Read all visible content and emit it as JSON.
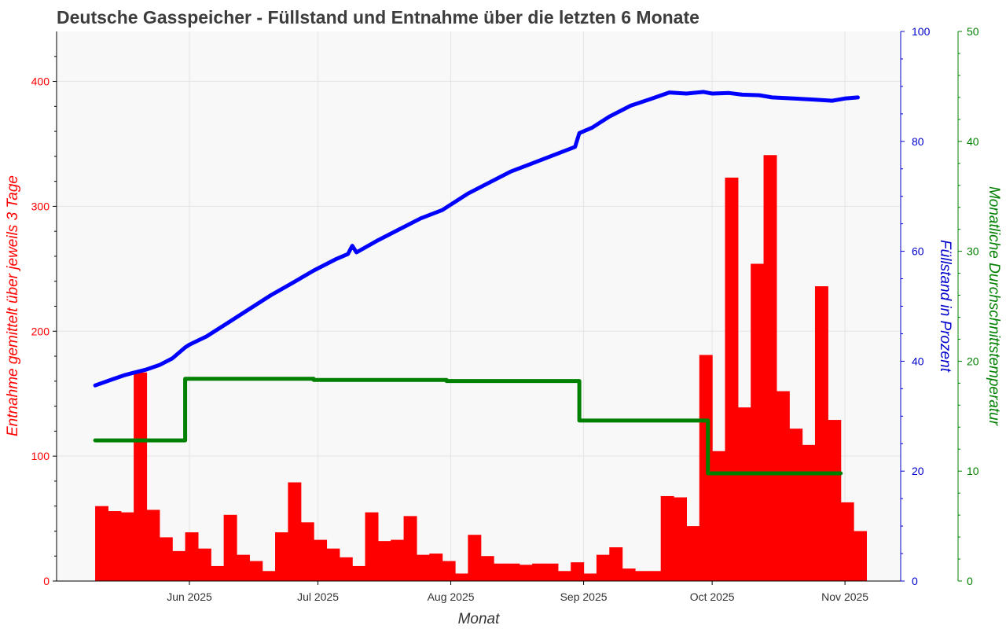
{
  "chart_data": {
    "type": "bar",
    "title": "Deutsche Gasspeicher - Füllstand und Entnahme über die letzten 6 Monate",
    "xlabel": "Monat",
    "ylabel_left": "Entnahme gemittelt über jeweils 3 Tage",
    "ylabel_right1": "Füllstand in Prozent",
    "ylabel_right2": "Monatliche Durchschnittstemperatur",
    "x_ticks": [
      "Jun 2025",
      "Jul 2025",
      "Aug 2025",
      "Sep 2025",
      "Oct 2025",
      "Nov 2025"
    ],
    "x_tick_dates": [
      "2025-06-01",
      "2025-07-01",
      "2025-08-01",
      "2025-09-01",
      "2025-10-01",
      "2025-11-01"
    ],
    "xlim": [
      "2025-05-01",
      "2025-11-14"
    ],
    "grid": true,
    "axes": {
      "left": {
        "ylim": [
          0,
          440
        ],
        "ticks": [
          0,
          100,
          200,
          300,
          400
        ],
        "color": "#ff0000"
      },
      "right1": {
        "ylim": [
          0,
          100
        ],
        "ticks": [
          0,
          20,
          40,
          60,
          80,
          100
        ],
        "color": "#0000cc"
      },
      "right2": {
        "ylim": [
          0,
          50
        ],
        "ticks": [
          0,
          10,
          20,
          30,
          40,
          50
        ],
        "color": "#008000"
      }
    },
    "series": [
      {
        "kind": "bar",
        "axis": "left",
        "color": "#ff0000",
        "width_days": 3,
        "x": [
          "2025-05-10",
          "2025-05-13",
          "2025-05-16",
          "2025-05-19",
          "2025-05-22",
          "2025-05-25",
          "2025-05-28",
          "2025-05-31",
          "2025-06-03",
          "2025-06-06",
          "2025-06-09",
          "2025-06-12",
          "2025-06-15",
          "2025-06-18",
          "2025-06-21",
          "2025-06-24",
          "2025-06-27",
          "2025-06-30",
          "2025-07-03",
          "2025-07-06",
          "2025-07-09",
          "2025-07-12",
          "2025-07-15",
          "2025-07-18",
          "2025-07-21",
          "2025-07-24",
          "2025-07-27",
          "2025-07-30",
          "2025-08-02",
          "2025-08-05",
          "2025-08-08",
          "2025-08-11",
          "2025-08-14",
          "2025-08-17",
          "2025-08-20",
          "2025-08-23",
          "2025-08-26",
          "2025-08-29",
          "2025-09-01",
          "2025-09-04",
          "2025-09-07",
          "2025-09-10",
          "2025-09-13",
          "2025-09-16",
          "2025-09-19",
          "2025-09-22",
          "2025-09-25",
          "2025-09-28",
          "2025-10-01",
          "2025-10-04",
          "2025-10-07",
          "2025-10-10",
          "2025-10-13",
          "2025-10-16",
          "2025-10-19",
          "2025-10-22",
          "2025-10-25",
          "2025-10-28",
          "2025-10-31",
          "2025-11-03"
        ],
        "values": [
          60,
          56,
          55,
          167,
          57,
          35,
          24,
          39,
          26,
          12,
          53,
          21,
          16,
          8,
          39,
          79,
          47,
          33,
          26,
          19,
          12,
          55,
          32,
          33,
          52,
          21,
          22,
          16,
          6,
          37,
          20,
          14,
          14,
          13,
          14,
          14,
          8,
          15,
          6,
          21,
          27,
          10,
          8,
          8,
          68,
          67,
          44,
          181,
          104,
          323,
          139,
          254,
          341,
          152,
          122,
          109,
          236,
          129,
          63,
          40
        ]
      },
      {
        "kind": "line",
        "axis": "right1",
        "color": "#0000ff",
        "x": [
          "2025-05-10",
          "2025-05-14",
          "2025-05-17",
          "2025-05-19",
          "2025-05-22",
          "2025-05-25",
          "2025-05-28",
          "2025-05-31",
          "2025-06-01",
          "2025-06-05",
          "2025-06-10",
          "2025-06-15",
          "2025-06-20",
          "2025-06-25",
          "2025-06-30",
          "2025-07-05",
          "2025-07-08",
          "2025-07-09",
          "2025-07-10",
          "2025-07-15",
          "2025-07-20",
          "2025-07-25",
          "2025-07-30",
          "2025-08-05",
          "2025-08-10",
          "2025-08-15",
          "2025-08-20",
          "2025-08-25",
          "2025-08-30",
          "2025-08-31",
          "2025-09-03",
          "2025-09-07",
          "2025-09-12",
          "2025-09-17",
          "2025-09-21",
          "2025-09-25",
          "2025-09-29",
          "2025-10-01",
          "2025-10-05",
          "2025-10-08",
          "2025-10-12",
          "2025-10-15",
          "2025-10-20",
          "2025-10-25",
          "2025-10-29",
          "2025-11-01",
          "2025-11-04"
        ],
        "values": [
          35.6,
          36.7,
          37.5,
          37.9,
          38.5,
          39.3,
          40.5,
          42.5,
          43.0,
          44.5,
          47.0,
          49.5,
          52.0,
          54.2,
          56.5,
          58.5,
          59.5,
          61.0,
          59.8,
          62.0,
          64.0,
          66.0,
          67.5,
          70.5,
          72.5,
          74.5,
          76.0,
          77.5,
          79.0,
          81.5,
          82.5,
          84.5,
          86.5,
          87.8,
          88.9,
          88.7,
          89.0,
          88.7,
          88.8,
          88.5,
          88.4,
          88.0,
          87.8,
          87.6,
          87.4,
          87.8,
          88.0
        ]
      },
      {
        "kind": "step",
        "axis": "right2",
        "color": "#008000",
        "x": [
          "2025-05-10",
          "2025-05-31",
          "2025-06-30",
          "2025-07-31",
          "2025-08-31",
          "2025-09-30",
          "2025-10-31"
        ],
        "values": [
          12.8,
          18.4,
          18.3,
          18.2,
          14.6,
          9.8,
          9.8
        ]
      }
    ]
  }
}
